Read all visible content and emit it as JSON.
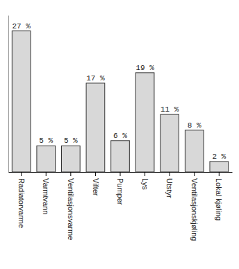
{
  "chart_data": {
    "type": "bar",
    "categories": [
      "Radiatorvarme",
      "Varmtvann",
      "Ventilasjonsvarme",
      "Vifter",
      "Pumper",
      "Lys",
      "Utstyr",
      "Ventilasjonskjøling",
      "Lokal kjøling"
    ],
    "values": [
      27,
      5,
      5,
      17,
      6,
      19,
      11,
      8,
      2
    ],
    "value_labels": [
      "27 %",
      "5 %",
      "5 %",
      "17 %",
      "6 %",
      "19 %",
      "11 %",
      "8 %",
      "2 %"
    ],
    "color": "#d8d8d8",
    "ylim": [
      0,
      30
    ],
    "data_labels": true,
    "tick_labels": "x"
  }
}
